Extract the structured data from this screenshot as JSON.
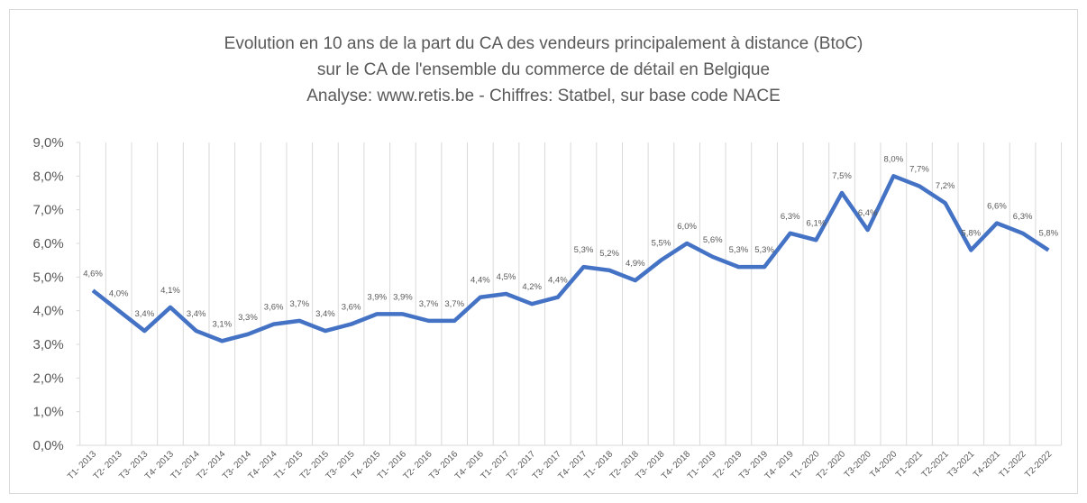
{
  "chart_data": {
    "type": "line",
    "title": [
      "Evolution en 10 ans de la part du CA des vendeurs principalement à distance (BtoC)",
      "sur le CA de l'ensemble du commerce de détail en Belgique",
      "Analyse: www.retis.be -  Chiffres: Statbel, sur base code NACE"
    ],
    "categories": [
      "T1- 2013",
      "T2- 2013",
      "T3- 2013",
      "T4- 2013",
      "T1- 2014",
      "T2- 2014",
      "T3- 2014",
      "T4- 2014",
      "T1- 2015",
      "T2- 2015",
      "T3- 2015",
      "T4- 2015",
      "T1- 2016",
      "T2- 2016",
      "T3- 2016",
      "T4- 2016",
      "T1- 2017",
      "T2- 2017",
      "T3- 2017",
      "T4- 2017",
      "T1- 2018",
      "T2- 2018",
      "T3- 2018",
      "T4- 2018",
      "T1- 2019",
      "T2- 2019",
      "T3- 2019",
      "T4- 2019",
      "T1- 2020",
      "T2- 2020",
      "T3-2020",
      "T4-2020",
      "T1-2021",
      "T2-2021",
      "T3-2021",
      "T4-2021",
      "T1-2022",
      "T2-2022"
    ],
    "series": [
      {
        "color": "#4472c4",
        "values": [
          4.6,
          4.0,
          3.4,
          4.1,
          3.4,
          3.1,
          3.3,
          3.6,
          3.7,
          3.4,
          3.6,
          3.9,
          3.9,
          3.7,
          3.7,
          4.4,
          4.5,
          4.2,
          4.4,
          5.3,
          5.2,
          4.9,
          5.5,
          6.0,
          5.6,
          5.3,
          5.3,
          6.3,
          6.1,
          7.5,
          6.4,
          8.0,
          7.7,
          7.2,
          5.8,
          6.6,
          6.3,
          5.8
        ],
        "value_labels": [
          "4,6%",
          "4,0%",
          "3,4%",
          "4,1%",
          "3,4%",
          "3,1%",
          "3,3%",
          "3,6%",
          "3,7%",
          "3,4%",
          "3,6%",
          "3,9%",
          "3,9%",
          "3,7%",
          "3,7%",
          "4,4%",
          "4,5%",
          "4,2%",
          "4,4%",
          "5,3%",
          "5,2%",
          "4,9%",
          "5,5%",
          "6,0%",
          "5,6%",
          "5,3%",
          "5,3%",
          "6,3%",
          "6,1%",
          "7,5%",
          "6,4%",
          "8,0%",
          "7,7%",
          "7,2%",
          "5,8%",
          "6,6%",
          "6,3%",
          "5,8%"
        ]
      }
    ],
    "ylim": [
      0,
      9
    ],
    "yticks": [
      {
        "value": 0,
        "label": "0,0%"
      },
      {
        "value": 1,
        "label": "1,0%"
      },
      {
        "value": 2,
        "label": "2,0%"
      },
      {
        "value": 3,
        "label": "3,0%"
      },
      {
        "value": 4,
        "label": "4,0%"
      },
      {
        "value": 5,
        "label": "5,0%"
      },
      {
        "value": 6,
        "label": "6,0%"
      },
      {
        "value": 7,
        "label": "7,0%"
      },
      {
        "value": 8,
        "label": "8,0%"
      },
      {
        "value": 9,
        "label": "9,0%"
      }
    ]
  }
}
